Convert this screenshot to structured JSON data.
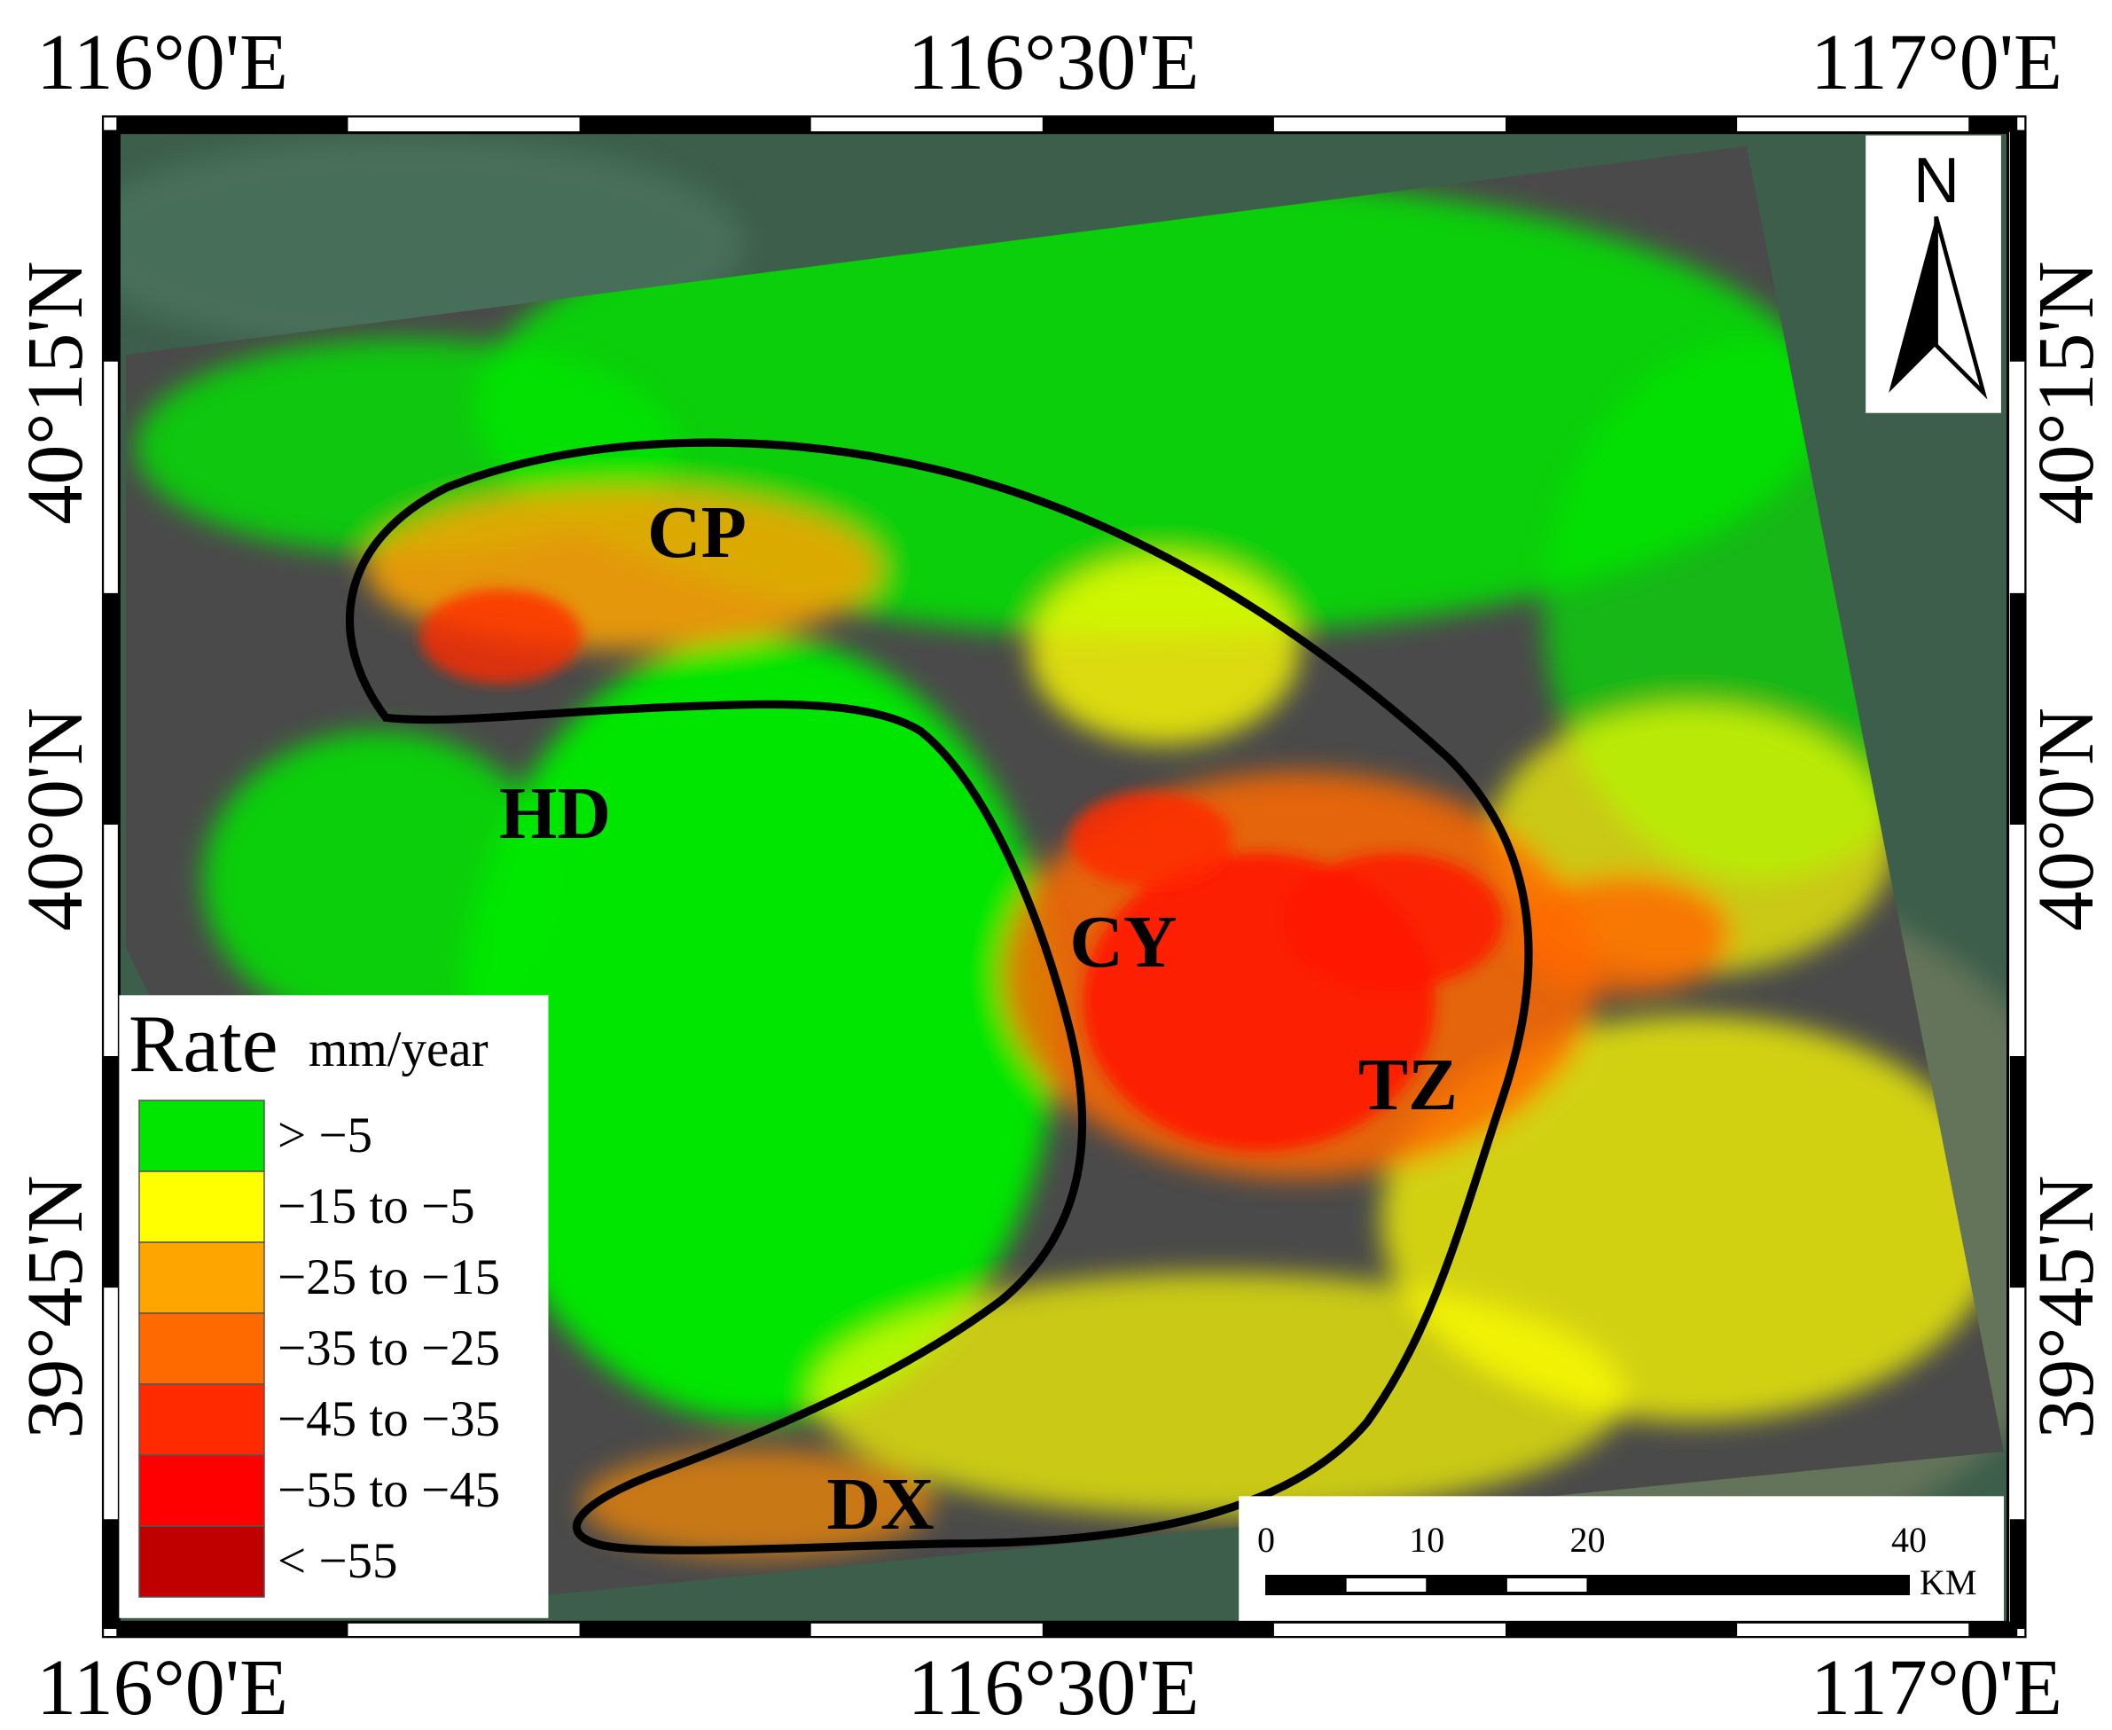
{
  "map": {
    "lon_labels_top": [
      "116°0'E",
      "116°30'E",
      "117°0'E"
    ],
    "lon_labels_bottom": [
      "116°0'E",
      "116°30'E",
      "117°0'E"
    ],
    "lat_labels_left": [
      "40°15'N",
      "40°0'N",
      "39°45'N"
    ],
    "lat_labels_right": [
      "40°15'N",
      "40°0'N",
      "39°45'N"
    ],
    "north": "N",
    "regions": [
      "CP",
      "HD",
      "CY",
      "TZ",
      "DX"
    ]
  },
  "legend": {
    "title": "Rate",
    "unit": "mm/year",
    "items": [
      {
        "label": "> −5",
        "color": "#00e600"
      },
      {
        "label": "−15 to −5",
        "color": "#ffff00"
      },
      {
        "label": "−25 to −15",
        "color": "#ffa500"
      },
      {
        "label": "−35 to −25",
        "color": "#ff6a00"
      },
      {
        "label": "−45 to −35",
        "color": "#ff2a00"
      },
      {
        "label": "−55 to −45",
        "color": "#ff0000"
      },
      {
        "label": "< −55",
        "color": "#c00000"
      }
    ]
  },
  "scale_bar": {
    "ticks": [
      0,
      10,
      20,
      40
    ],
    "unit": "KM"
  }
}
